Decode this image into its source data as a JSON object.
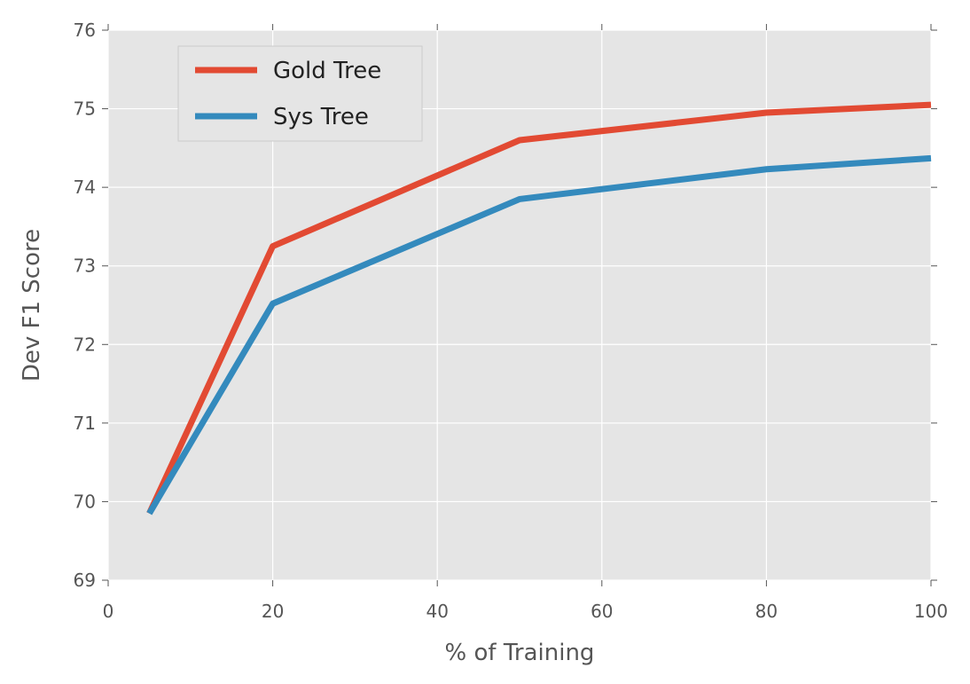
{
  "chart_data": {
    "type": "line",
    "title": "",
    "xlabel": "% of Training",
    "ylabel": "Dev F1 Score",
    "xlim": [
      0,
      100
    ],
    "ylim": [
      69,
      76
    ],
    "xticks": [
      0,
      20,
      40,
      60,
      80,
      100
    ],
    "yticks": [
      69,
      70,
      71,
      72,
      73,
      74,
      75,
      76
    ],
    "grid": true,
    "legend_position": "top-left",
    "x": [
      5,
      20,
      50,
      80,
      100
    ],
    "series": [
      {
        "name": "Gold Tree",
        "color": "#E24A33",
        "values": [
          69.85,
          73.25,
          74.6,
          74.95,
          75.05
        ]
      },
      {
        "name": "Sys Tree",
        "color": "#348ABD",
        "values": [
          69.85,
          72.52,
          73.85,
          74.23,
          74.37
        ]
      }
    ]
  },
  "colors": {
    "plot_background": "#E5E5E5",
    "gridline": "#FFFFFF",
    "text": "#555555"
  }
}
